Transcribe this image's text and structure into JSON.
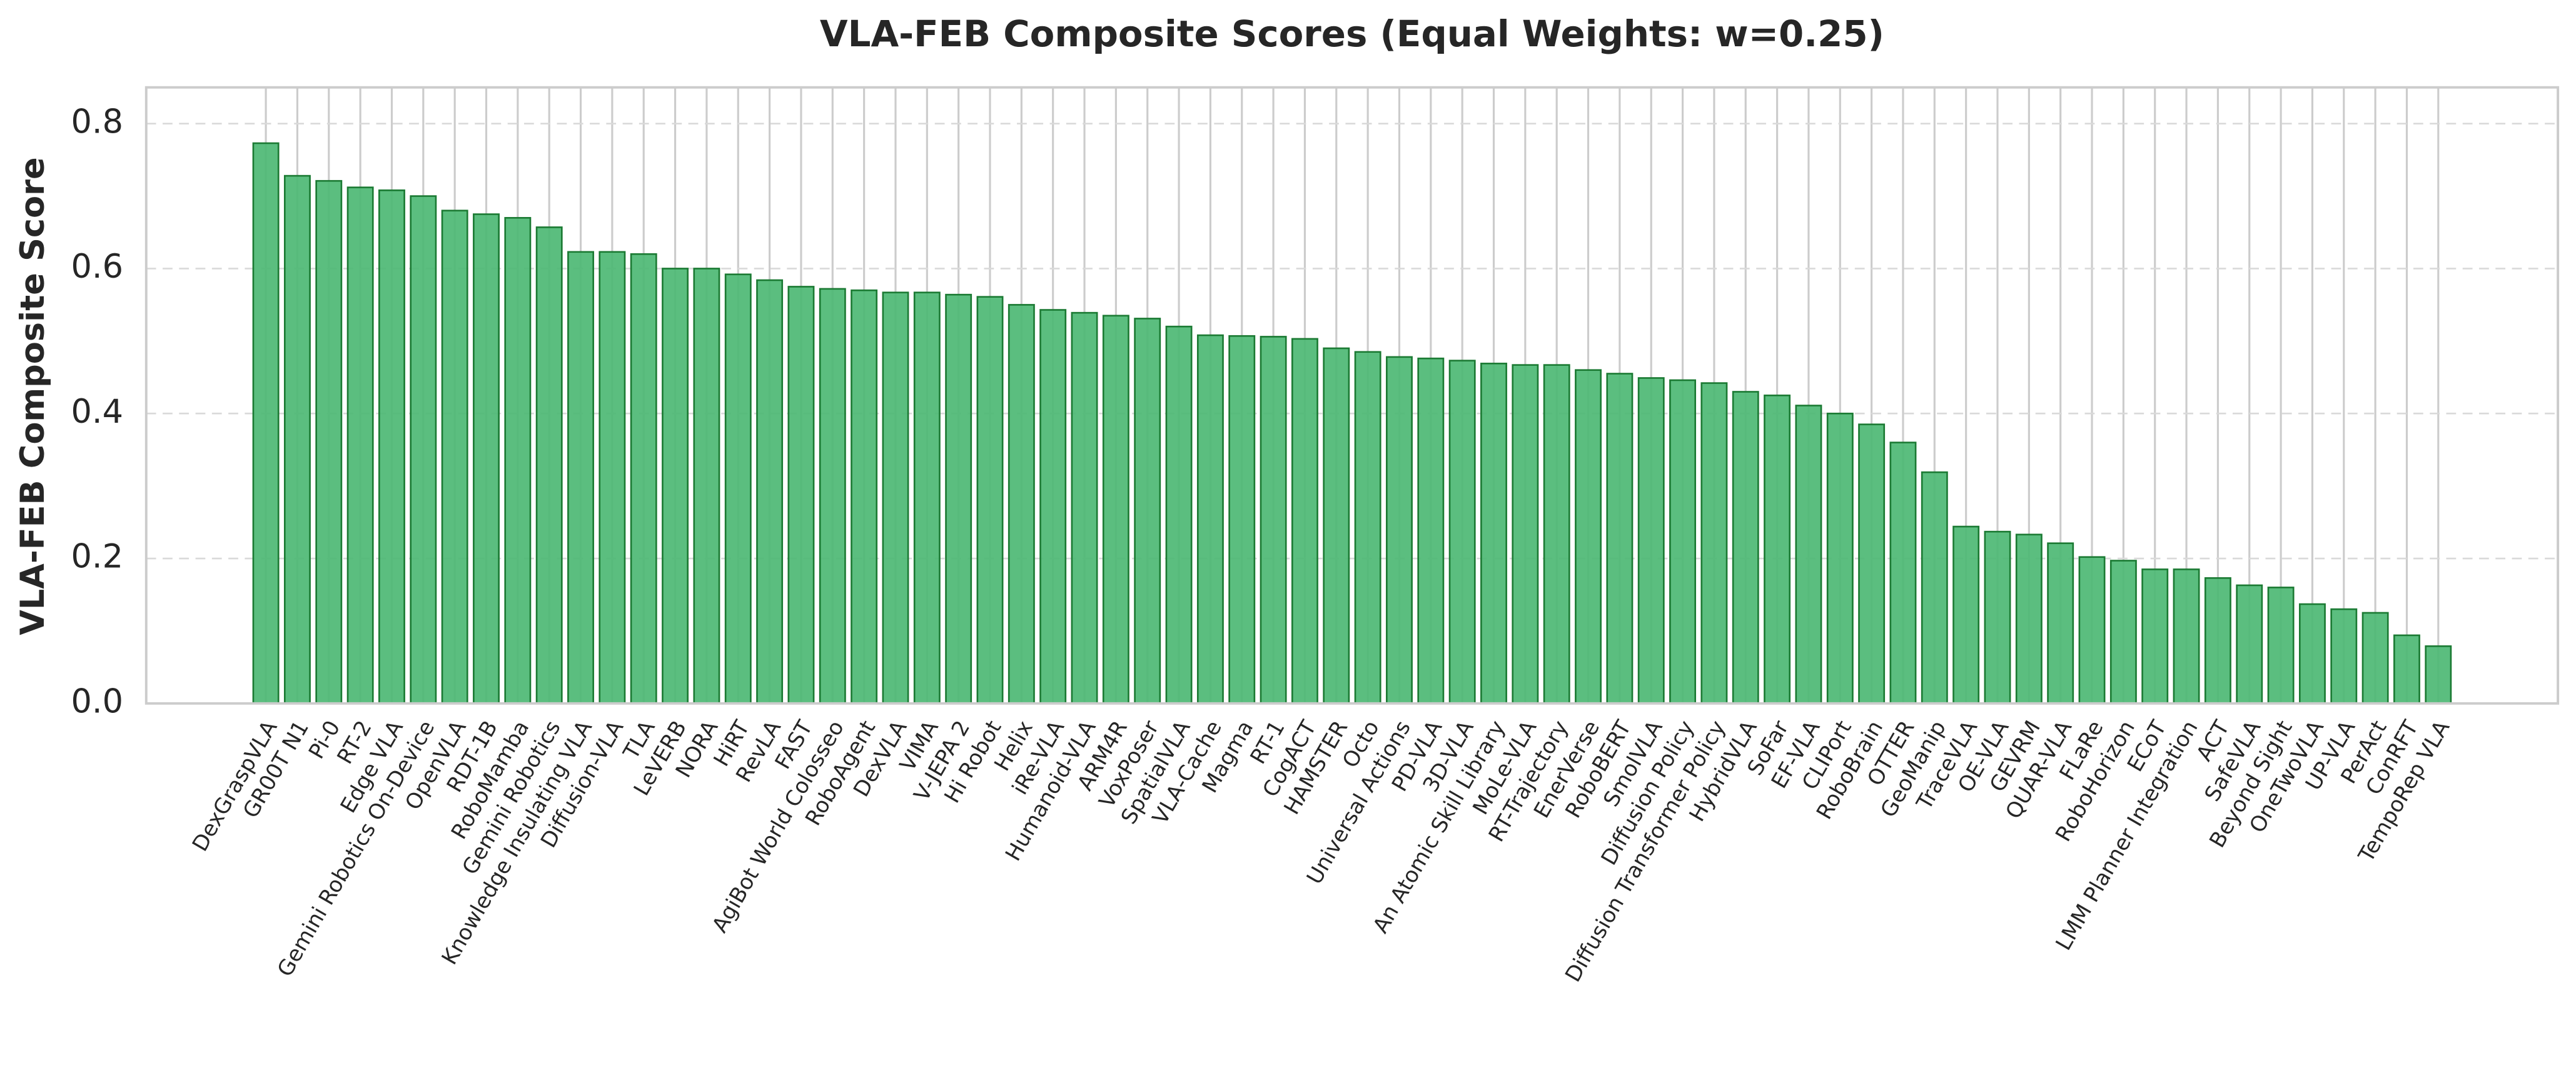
{
  "chart_data": {
    "type": "bar",
    "title": "VLA-FEB Composite Scores (Equal Weights: w=0.25)",
    "ylabel": "VLA-FEB Composite Score",
    "categories": [
      "DexGraspVLA",
      "GR00T N1",
      "Pi-0",
      "RT-2",
      "Edge VLA",
      "Gemini Robotics On-Device",
      "OpenVLA",
      "RDT-1B",
      "RoboMamba",
      "Gemini Robotics",
      "Knowledge Insulating VLA",
      "Diffusion-VLA",
      "TLA",
      "LeVERB",
      "NORA",
      "HiRT",
      "RevLA",
      "FAST",
      "AgiBot World Colosseo",
      "RoboAgent",
      "DexVLA",
      "VIMA",
      "V-JEPA 2",
      "Hi Robot",
      "Helix",
      "iRe-VLA",
      "Humanoid-VLA",
      "ARM4R",
      "VoxPoser",
      "SpatialVLA",
      "VLA-Cache",
      "Magma",
      "RT-1",
      "CogACT",
      "HAMSTER",
      "Octo",
      "Universal Actions",
      "PD-VLA",
      "3D-VLA",
      "An Atomic Skill Library",
      "MoLe-VLA",
      "RT-Trajectory",
      "EnerVerse",
      "RoboBERT",
      "SmolVLA",
      "Diffusion Policy",
      "Diffusion Transformer Policy",
      "HybridVLA",
      "SoFar",
      "EF-VLA",
      "CLIPort",
      "RoboBrain",
      "OTTER",
      "GeoManip",
      "TraceVLA",
      "OE-VLA",
      "GEVRM",
      "QUAR-VLA",
      "FLaRe",
      "RoboHorizon",
      "ECoT",
      "LMM Planner Integration",
      "ACT",
      "SafeVLA",
      "Beyond Sight",
      "OneTwoVLA",
      "UP-VLA",
      "PerAct",
      "ConRFT",
      "TempoRep VLA"
    ],
    "values": [
      0.773,
      0.728,
      0.721,
      0.712,
      0.708,
      0.7,
      0.68,
      0.675,
      0.67,
      0.657,
      0.623,
      0.623,
      0.62,
      0.6,
      0.6,
      0.592,
      0.584,
      0.575,
      0.572,
      0.57,
      0.567,
      0.567,
      0.564,
      0.561,
      0.55,
      0.543,
      0.539,
      0.535,
      0.531,
      0.52,
      0.508,
      0.507,
      0.506,
      0.503,
      0.49,
      0.485,
      0.478,
      0.476,
      0.473,
      0.469,
      0.467,
      0.467,
      0.46,
      0.455,
      0.449,
      0.446,
      0.442,
      0.43,
      0.425,
      0.411,
      0.4,
      0.385,
      0.36,
      0.319,
      0.244,
      0.237,
      0.233,
      0.221,
      0.202,
      0.197,
      0.185,
      0.185,
      0.173,
      0.163,
      0.16,
      0.137,
      0.13,
      0.125,
      0.094,
      0.079
    ],
    "color": "#4db874",
    "edgecolor": "#1b7a33",
    "ylim": [
      0,
      0.85
    ],
    "yticks": [
      {
        "value": 0,
        "label": "0.0"
      },
      {
        "value": 0.2,
        "label": "0.2"
      },
      {
        "value": 0.4,
        "label": "0.4"
      },
      {
        "value": 0.6,
        "label": "0.6"
      },
      {
        "value": 0.8,
        "label": "0.8"
      }
    ],
    "grid": true
  }
}
